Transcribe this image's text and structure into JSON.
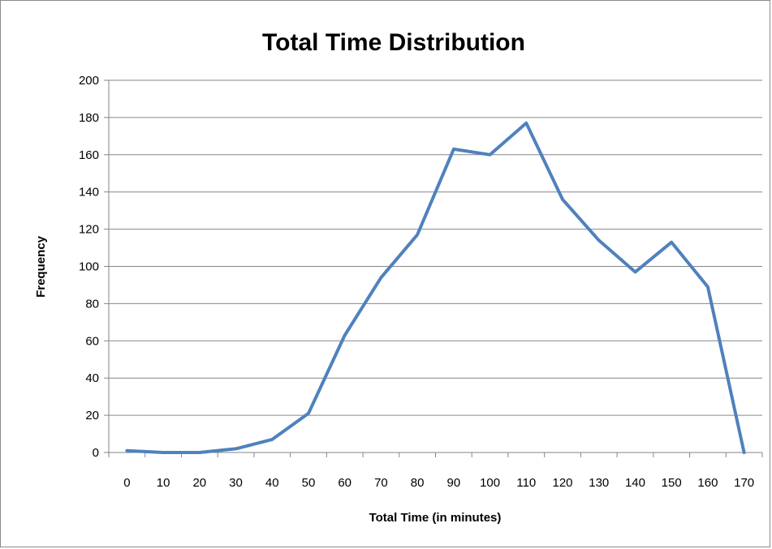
{
  "chart_data": {
    "type": "line",
    "title": "Total Time Distribution",
    "xlabel": "Total Time (in minutes)",
    "ylabel": "Frequency",
    "categories": [
      "0",
      "10",
      "20",
      "30",
      "40",
      "50",
      "60",
      "70",
      "80",
      "90",
      "100",
      "110",
      "120",
      "130",
      "140",
      "150",
      "160",
      "170"
    ],
    "series": [
      {
        "values": [
          1,
          0,
          0,
          2,
          7,
          21,
          63,
          94,
          117,
          163,
          160,
          177,
          136,
          114,
          97,
          113,
          89,
          0
        ]
      }
    ],
    "ylim": [
      0,
      200
    ],
    "yticks": [
      "0",
      "20",
      "40",
      "60",
      "80",
      "100",
      "120",
      "140",
      "160",
      "180",
      "200"
    ],
    "grid": true,
    "line_color": "#4f81bd"
  }
}
